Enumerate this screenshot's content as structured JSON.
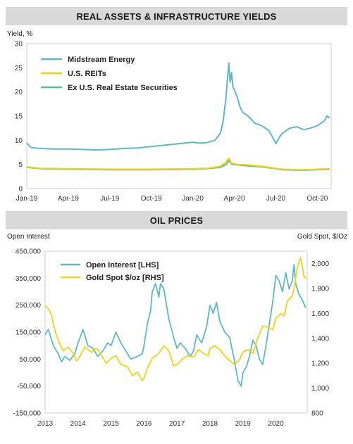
{
  "banners": {
    "top": "REAL ASSETS & INFRASTRUCTURE YIELDS",
    "bottom": "OIL PRICES"
  },
  "chart_data": [
    {
      "type": "line",
      "title": "REAL ASSETS & INFRASTRUCTURE YIELDS",
      "ylabel": "Yield, %",
      "ylim": [
        0,
        30
      ],
      "yticks": [
        "0",
        "5",
        "10",
        "15",
        "20",
        "25",
        "30"
      ],
      "xlim": [
        0,
        22
      ],
      "xticks": [
        {
          "label": "Jan-19",
          "t": 0
        },
        {
          "label": "Apr-19",
          "t": 3
        },
        {
          "label": "Jul-19",
          "t": 6
        },
        {
          "label": "Oct-19",
          "t": 9
        },
        {
          "label": "Jan-20",
          "t": 12
        },
        {
          "label": "Apr-20",
          "t": 15
        },
        {
          "label": "Jul-20",
          "t": 18
        },
        {
          "label": "Oct-20",
          "t": 21
        }
      ],
      "grid": false,
      "legend": "top-left",
      "series": [
        {
          "name": "Midstream Energy",
          "color": "#5fb8c4",
          "points": [
            [
              0,
              9.4
            ],
            [
              0.3,
              8.5
            ],
            [
              1,
              8.3
            ],
            [
              2,
              8.2
            ],
            [
              3,
              8.2
            ],
            [
              4,
              8.1
            ],
            [
              5,
              8.0
            ],
            [
              6,
              8.1
            ],
            [
              7,
              8.3
            ],
            [
              8,
              8.4
            ],
            [
              9,
              8.7
            ],
            [
              10,
              9.0
            ],
            [
              11,
              9.3
            ],
            [
              12,
              9.6
            ],
            [
              12.5,
              9.4
            ],
            [
              13,
              9.5
            ],
            [
              13.6,
              10.0
            ],
            [
              14,
              11.5
            ],
            [
              14.2,
              14.0
            ],
            [
              14.4,
              19.0
            ],
            [
              14.5,
              22.5
            ],
            [
              14.6,
              26.0
            ],
            [
              14.7,
              22.0
            ],
            [
              14.8,
              24.0
            ],
            [
              14.9,
              21.0
            ],
            [
              15.0,
              20.5
            ],
            [
              15.2,
              19.0
            ],
            [
              15.4,
              17.0
            ],
            [
              15.6,
              15.8
            ],
            [
              16,
              15.0
            ],
            [
              16.5,
              13.5
            ],
            [
              17,
              13.0
            ],
            [
              17.5,
              12.0
            ],
            [
              17.8,
              10.5
            ],
            [
              18,
              9.3
            ],
            [
              18.3,
              10.8
            ],
            [
              18.5,
              11.5
            ],
            [
              19,
              12.5
            ],
            [
              19.5,
              12.8
            ],
            [
              20,
              12.2
            ],
            [
              20.5,
              12.5
            ],
            [
              21,
              13.0
            ],
            [
              21.5,
              14.0
            ],
            [
              21.7,
              15.0
            ],
            [
              21.9,
              14.6
            ]
          ]
        },
        {
          "name": "U.S. REITs",
          "color": "#f2d31b",
          "points": [
            [
              0,
              4.5
            ],
            [
              1,
              4.2
            ],
            [
              3,
              4.1
            ],
            [
              6,
              4.0
            ],
            [
              9,
              4.0
            ],
            [
              12,
              4.1
            ],
            [
              13,
              4.2
            ],
            [
              14,
              4.6
            ],
            [
              14.4,
              5.5
            ],
            [
              14.6,
              6.3
            ],
            [
              14.8,
              5.3
            ],
            [
              15.2,
              5.0
            ],
            [
              16,
              4.9
            ],
            [
              17,
              4.6
            ],
            [
              18,
              4.2
            ],
            [
              18.5,
              4.0
            ],
            [
              20,
              3.9
            ],
            [
              21,
              4.0
            ],
            [
              21.9,
              4.1
            ]
          ]
        },
        {
          "name": "Ex U.S. Real Estate Securities",
          "color": "#5cc08a",
          "points": [
            [
              0,
              4.4
            ],
            [
              1,
              4.1
            ],
            [
              3,
              4.0
            ],
            [
              6,
              3.9
            ],
            [
              9,
              3.9
            ],
            [
              12,
              4.0
            ],
            [
              13,
              4.1
            ],
            [
              14,
              4.4
            ],
            [
              14.4,
              5.0
            ],
            [
              14.6,
              5.8
            ],
            [
              14.8,
              5.1
            ],
            [
              15.2,
              4.9
            ],
            [
              16,
              4.7
            ],
            [
              17,
              4.5
            ],
            [
              18,
              4.1
            ],
            [
              18.5,
              3.9
            ],
            [
              20,
              3.8
            ],
            [
              21,
              3.9
            ],
            [
              21.9,
              4.0
            ]
          ]
        }
      ]
    },
    {
      "type": "line",
      "title": "OIL PRICES",
      "ylabel": "Open Interest",
      "y2label": "Gold Spot, $/Oz",
      "ylim": [
        -150000,
        450000
      ],
      "yticks": [
        "450,000",
        "350,000",
        "250,000",
        "150,000",
        "50,000",
        "-50,000",
        "-150,000"
      ],
      "y2lim": [
        800,
        2100
      ],
      "y2ticks": [
        "2,000",
        "1,800",
        "1,600",
        "1,400",
        "1,200",
        "1,000",
        "800"
      ],
      "xlim": [
        2013,
        2020.95
      ],
      "xticks": [
        "2013",
        "2014",
        "2015",
        "2016",
        "2017",
        "2018",
        "2019",
        "2020"
      ],
      "grid": false,
      "legend": "top-left",
      "series": [
        {
          "name": "Open Interest [LHS]",
          "axis": "left",
          "color": "#5fb8c4",
          "points": [
            [
              2013,
              140000
            ],
            [
              2013.1,
              160000
            ],
            [
              2013.25,
              100000
            ],
            [
              2013.4,
              70000
            ],
            [
              2013.5,
              40000
            ],
            [
              2013.6,
              60000
            ],
            [
              2013.75,
              45000
            ],
            [
              2013.9,
              70000
            ],
            [
              2014,
              110000
            ],
            [
              2014.15,
              160000
            ],
            [
              2014.3,
              100000
            ],
            [
              2014.45,
              90000
            ],
            [
              2014.6,
              60000
            ],
            [
              2014.75,
              80000
            ],
            [
              2014.9,
              110000
            ],
            [
              2015,
              100000
            ],
            [
              2015.15,
              150000
            ],
            [
              2015.3,
              110000
            ],
            [
              2015.45,
              80000
            ],
            [
              2015.6,
              50000
            ],
            [
              2015.8,
              60000
            ],
            [
              2015.95,
              70000
            ],
            [
              2016,
              100000
            ],
            [
              2016.1,
              180000
            ],
            [
              2016.2,
              230000
            ],
            [
              2016.25,
              300000
            ],
            [
              2016.35,
              330000
            ],
            [
              2016.45,
              280000
            ],
            [
              2016.5,
              330000
            ],
            [
              2016.6,
              310000
            ],
            [
              2016.75,
              200000
            ],
            [
              2016.9,
              130000
            ],
            [
              2017,
              90000
            ],
            [
              2017.1,
              110000
            ],
            [
              2017.25,
              90000
            ],
            [
              2017.4,
              60000
            ],
            [
              2017.5,
              80000
            ],
            [
              2017.6,
              140000
            ],
            [
              2017.75,
              110000
            ],
            [
              2017.9,
              170000
            ],
            [
              2018,
              250000
            ],
            [
              2018.1,
              220000
            ],
            [
              2018.2,
              260000
            ],
            [
              2018.3,
              190000
            ],
            [
              2018.45,
              150000
            ],
            [
              2018.6,
              130000
            ],
            [
              2018.75,
              40000
            ],
            [
              2018.85,
              -30000
            ],
            [
              2018.95,
              -50000
            ],
            [
              2019,
              0
            ],
            [
              2019.1,
              20000
            ],
            [
              2019.2,
              60000
            ],
            [
              2019.3,
              120000
            ],
            [
              2019.4,
              100000
            ],
            [
              2019.5,
              50000
            ],
            [
              2019.6,
              30000
            ],
            [
              2019.7,
              100000
            ],
            [
              2019.8,
              180000
            ],
            [
              2019.9,
              260000
            ],
            [
              2020,
              360000
            ],
            [
              2020.1,
              340000
            ],
            [
              2020.2,
              300000
            ],
            [
              2020.3,
              370000
            ],
            [
              2020.4,
              310000
            ],
            [
              2020.5,
              340000
            ],
            [
              2020.55,
              400000
            ],
            [
              2020.6,
              330000
            ],
            [
              2020.7,
              290000
            ],
            [
              2020.8,
              270000
            ],
            [
              2020.9,
              240000
            ]
          ]
        },
        {
          "name": "Gold Spot $/oz [RHS]",
          "axis": "right",
          "color": "#f2d31b",
          "points": [
            [
              2013,
              1660
            ],
            [
              2013.1,
              1640
            ],
            [
              2013.2,
              1580
            ],
            [
              2013.3,
              1460
            ],
            [
              2013.45,
              1350
            ],
            [
              2013.55,
              1300
            ],
            [
              2013.7,
              1330
            ],
            [
              2013.85,
              1280
            ],
            [
              2013.95,
              1220
            ],
            [
              2014,
              1230
            ],
            [
              2014.2,
              1330
            ],
            [
              2014.4,
              1290
            ],
            [
              2014.55,
              1320
            ],
            [
              2014.7,
              1270
            ],
            [
              2014.85,
              1200
            ],
            [
              2015,
              1240
            ],
            [
              2015.15,
              1260
            ],
            [
              2015.3,
              1190
            ],
            [
              2015.5,
              1170
            ],
            [
              2015.65,
              1100
            ],
            [
              2015.8,
              1130
            ],
            [
              2015.95,
              1060
            ],
            [
              2016,
              1080
            ],
            [
              2016.1,
              1160
            ],
            [
              2016.25,
              1240
            ],
            [
              2016.45,
              1280
            ],
            [
              2016.6,
              1340
            ],
            [
              2016.75,
              1300
            ],
            [
              2016.9,
              1180
            ],
            [
              2017,
              1190
            ],
            [
              2017.15,
              1230
            ],
            [
              2017.3,
              1260
            ],
            [
              2017.5,
              1250
            ],
            [
              2017.65,
              1310
            ],
            [
              2017.8,
              1280
            ],
            [
              2017.95,
              1260
            ],
            [
              2018,
              1320
            ],
            [
              2018.15,
              1340
            ],
            [
              2018.3,
              1310
            ],
            [
              2018.45,
              1260
            ],
            [
              2018.6,
              1220
            ],
            [
              2018.75,
              1190
            ],
            [
              2018.9,
              1230
            ],
            [
              2019,
              1290
            ],
            [
              2019.15,
              1310
            ],
            [
              2019.3,
              1280
            ],
            [
              2019.45,
              1400
            ],
            [
              2019.6,
              1500
            ],
            [
              2019.75,
              1490
            ],
            [
              2019.9,
              1470
            ],
            [
              2020,
              1560
            ],
            [
              2020.15,
              1600
            ],
            [
              2020.25,
              1580
            ],
            [
              2020.35,
              1700
            ],
            [
              2020.5,
              1740
            ],
            [
              2020.55,
              1800
            ],
            [
              2020.65,
              1970
            ],
            [
              2020.75,
              2050
            ],
            [
              2020.85,
              1900
            ],
            [
              2020.92,
              1880
            ]
          ]
        }
      ]
    }
  ]
}
